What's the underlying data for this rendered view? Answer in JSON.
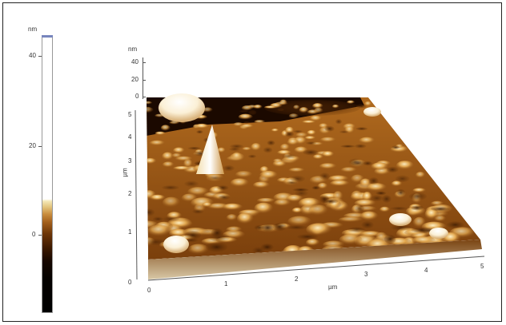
{
  "colorbar": {
    "unit": "nm",
    "labels": [
      "40",
      "20",
      "0"
    ],
    "values_nm": [
      40,
      20,
      0
    ],
    "colormap": "AFM gold-brown"
  },
  "surface_plot": {
    "z_unit": "nm",
    "z_ticks": [
      "40",
      "20",
      "0"
    ],
    "y_axis_label": "µm",
    "y_ticks": [
      "5",
      "4",
      "3",
      "2",
      "1",
      "0"
    ],
    "x_axis_label": "µm",
    "x_ticks": [
      "0",
      "1",
      "2",
      "3",
      "4",
      "5"
    ],
    "colors": {
      "peak": "#fff6dc",
      "high": "#e8b766",
      "mid": "#b87225",
      "low": "#6c3506",
      "pit": "#0c0400"
    }
  }
}
